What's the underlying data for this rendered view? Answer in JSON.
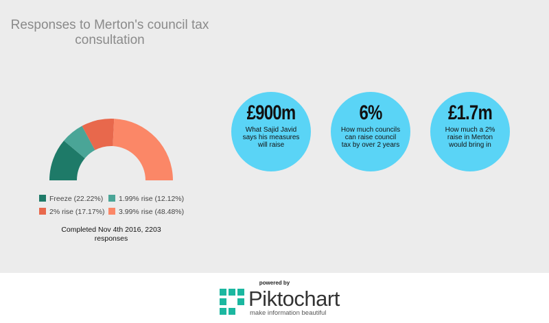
{
  "chart_data": {
    "type": "pie",
    "title": "Responses to Merton's council tax consultation",
    "categories": [
      "Freeze (22.22%)",
      "1.99% rise (12.12%)",
      "2% rise (17.17%)",
      "3.99% rise (48.48%)"
    ],
    "values": [
      22.22,
      12.12,
      17.17,
      48.48
    ],
    "colors": [
      "#1e7a68",
      "#4aa597",
      "#e8684c",
      "#fb8767"
    ],
    "note": "Completed Nov 4th 2016, 2203 responses"
  },
  "stats": [
    {
      "value": "£900m",
      "text": "What Sajid Javid says his measures will raise"
    },
    {
      "value": "6%",
      "text": "How much councils can raise council tax by over 2 years"
    },
    {
      "value": "£1.7m",
      "text": "How much a 2% raise in Merton would bring in"
    }
  ],
  "footer": {
    "powered": "powered by",
    "brand": "Piktochart",
    "tagline": "make information beautiful"
  }
}
